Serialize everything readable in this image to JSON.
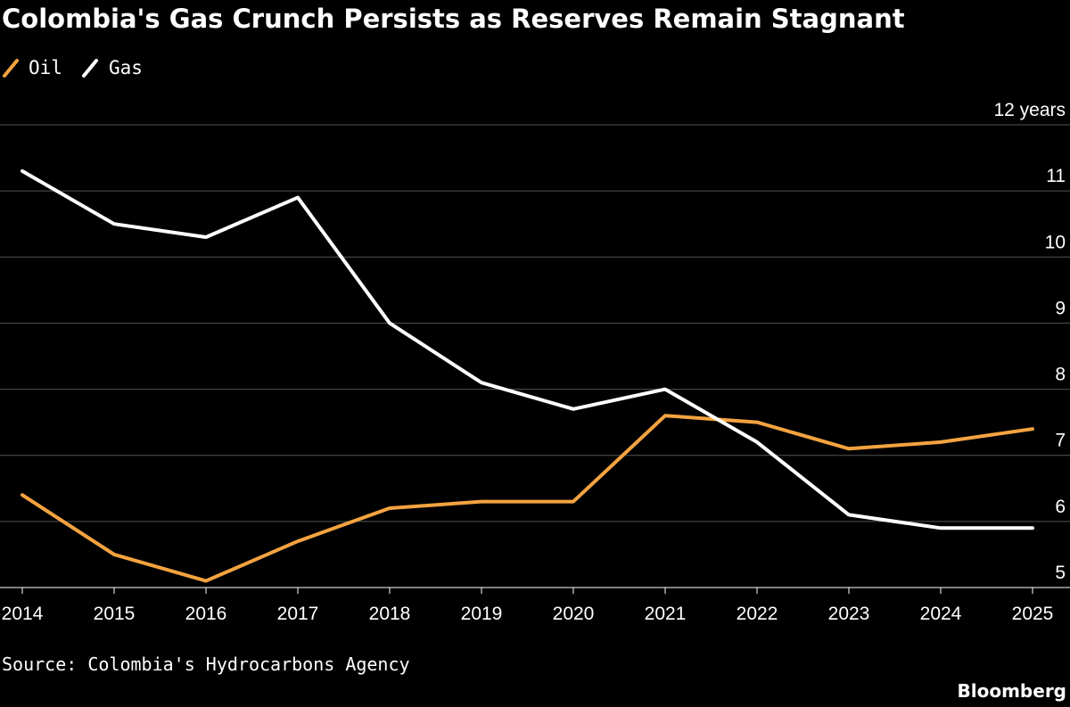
{
  "title": "Colombia's Gas Crunch Persists as Reserves Remain Stagnant",
  "legend": [
    {
      "label": "Oil",
      "color": "#f4a340",
      "icon": "slash-swatch-icon"
    },
    {
      "label": "Gas",
      "color": "#ffffff",
      "icon": "slash-swatch-icon"
    }
  ],
  "source": "Source: Colombia's Hydrocarbons Agency",
  "brand": "Bloomberg",
  "chart_data": {
    "type": "line",
    "title": "Colombia's Gas Crunch Persists as Reserves Remain Stagnant",
    "x": [
      "2014",
      "2015",
      "2016",
      "2017",
      "2018",
      "2019",
      "2020",
      "2021",
      "2022",
      "2023",
      "2024",
      "2025"
    ],
    "series": [
      {
        "name": "Oil",
        "color": "#f4a340",
        "values": [
          6.4,
          5.5,
          5.1,
          5.7,
          6.2,
          6.3,
          6.3,
          7.6,
          7.5,
          7.1,
          7.2,
          7.4
        ]
      },
      {
        "name": "Gas",
        "color": "#ffffff",
        "values": [
          11.3,
          10.5,
          10.3,
          10.9,
          9.0,
          8.1,
          7.7,
          8.0,
          7.2,
          6.1,
          5.9,
          5.9
        ]
      }
    ],
    "ylim": [
      5,
      12
    ],
    "yticks": [
      5,
      6,
      7,
      8,
      9,
      10,
      11,
      12
    ],
    "ytick_labels": [
      "5",
      "6",
      "7",
      "8",
      "9",
      "10",
      "11",
      "12 years"
    ],
    "grid": true,
    "legend_position": "top-left",
    "y_axis_side": "right",
    "gridline_color": "#555555"
  }
}
